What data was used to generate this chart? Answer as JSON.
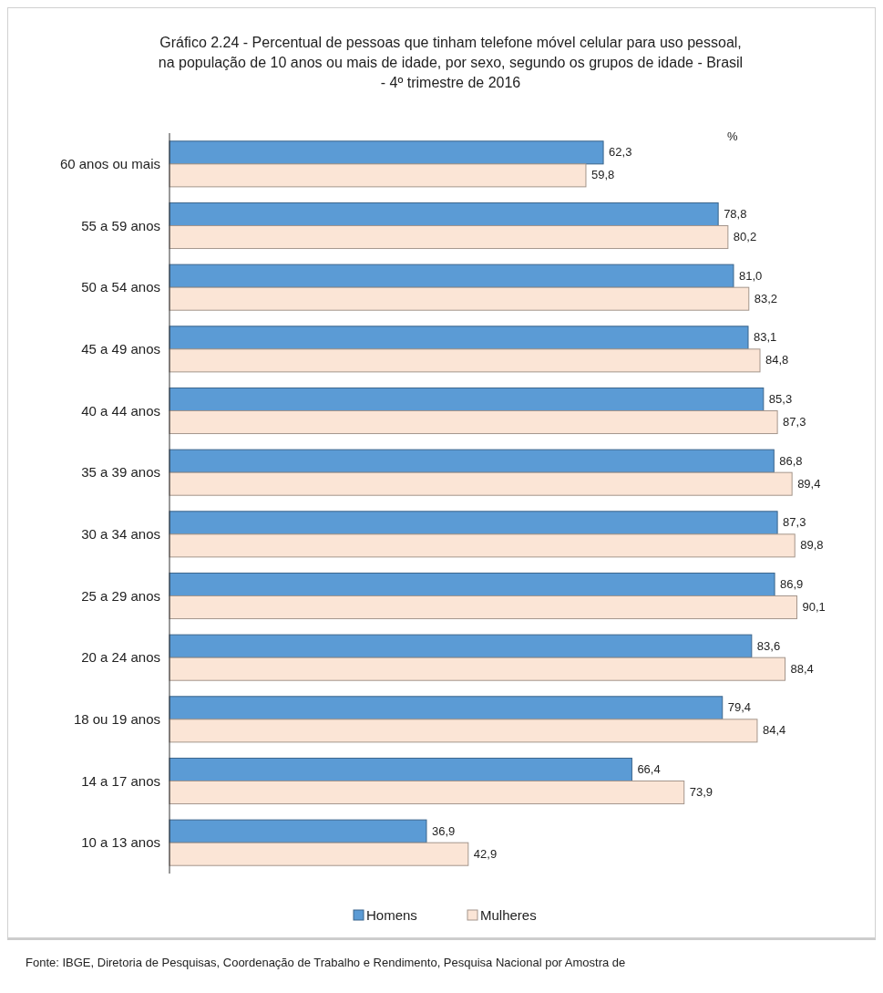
{
  "chart_data": {
    "type": "bar",
    "orientation": "horizontal",
    "title": "Gráfico 2.24 - Percentual de pessoas que tinham telefone móvel celular para uso pessoal, na população de 10 anos ou mais de idade, por sexo, segundo os grupos de idade - Brasil - 4º trimestre de 2016",
    "xlabel": "%",
    "categories": [
      "60 anos ou mais",
      "55 a 59 anos",
      "50 a 54 anos",
      "45 a 49 anos",
      "40 a 44 anos",
      "35 a 39 anos",
      "30 a 34 anos",
      "25 a 29 anos",
      "20 a 24 anos",
      "18 ou 19 anos",
      "14 a 17 anos",
      "10 a 13 anos"
    ],
    "series": [
      {
        "name": "Homens",
        "color": "#5b9bd5",
        "values": [
          62.3,
          78.8,
          81.0,
          83.1,
          85.3,
          86.8,
          87.3,
          86.9,
          83.6,
          79.4,
          66.4,
          36.9
        ],
        "value_labels": [
          "62,3",
          "78,8",
          "81,0",
          "83,1",
          "85,3",
          "86,8",
          "87,3",
          "86,9",
          "83,6",
          "79,4",
          "66,4",
          "36,9"
        ]
      },
      {
        "name": "Mulheres",
        "color": "#fbe5d6",
        "values": [
          59.8,
          80.2,
          83.2,
          84.8,
          87.3,
          89.4,
          89.8,
          90.1,
          88.4,
          84.4,
          73.9,
          42.9
        ],
        "value_labels": [
          "59,8",
          "80,2",
          "83,2",
          "84,8",
          "87,3",
          "89,4",
          "89,8",
          "90,1",
          "88,4",
          "84,4",
          "73,9",
          "42,9"
        ]
      }
    ],
    "tick_labels": "y",
    "legend": "bottom",
    "annotations": [
      "Fonte: IBGE, Diretoria de Pesquisas, Coordenação de Trabalho e Rendimento, Pesquisa Nacional por Amostra de"
    ]
  }
}
